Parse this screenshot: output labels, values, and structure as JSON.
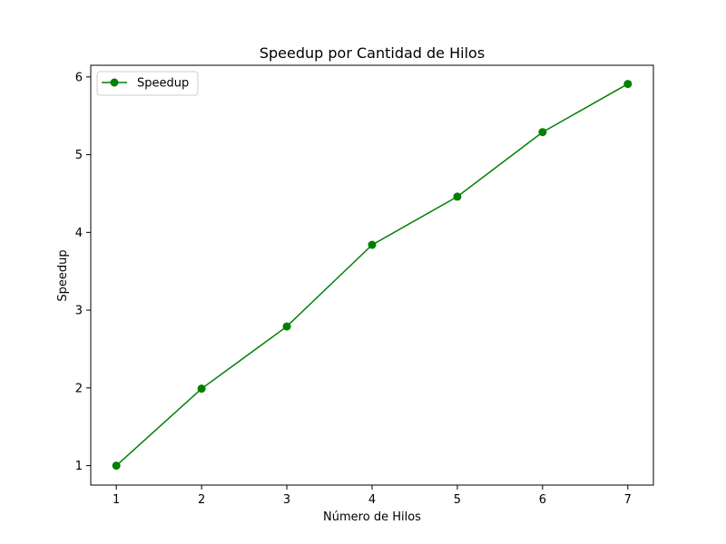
{
  "chart_data": {
    "type": "line",
    "title": "Speedup por Cantidad de Hilos",
    "xlabel": "Número de Hilos",
    "ylabel": "Speedup",
    "x": [
      1,
      2,
      3,
      4,
      5,
      6,
      7
    ],
    "series": [
      {
        "name": "Speedup",
        "values": [
          1.0,
          1.99,
          2.79,
          3.84,
          4.46,
          5.29,
          5.91
        ],
        "color": "#008000",
        "marker": "circle"
      }
    ],
    "xticks": [
      "1",
      "2",
      "3",
      "4",
      "5",
      "6",
      "7"
    ],
    "yticks": [
      "1",
      "2",
      "3",
      "4",
      "5",
      "6"
    ],
    "xlim": [
      0.7,
      7.3
    ],
    "ylim": [
      0.75,
      6.15
    ],
    "grid": false,
    "legend": "top-left"
  }
}
